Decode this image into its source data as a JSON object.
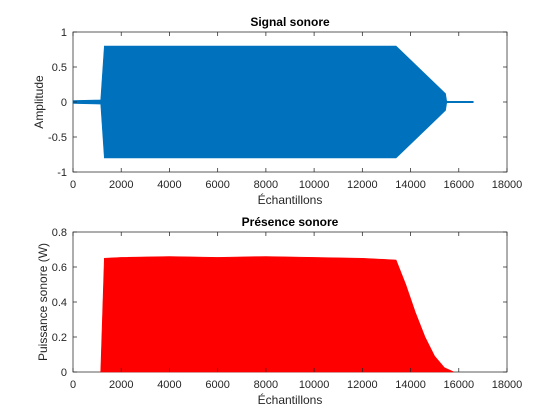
{
  "chart_data": [
    {
      "type": "area",
      "title": "Signal sonore",
      "xlabel": "Échantillons",
      "ylabel": "Amplitude",
      "xlim": [
        0,
        18000
      ],
      "ylim": [
        -1,
        1
      ],
      "xticks": [
        0,
        2000,
        4000,
        6000,
        8000,
        10000,
        12000,
        14000,
        16000,
        18000
      ],
      "yticks": [
        -1,
        -0.5,
        0,
        0.5,
        1
      ],
      "ytick_labels": [
        "-1",
        "-0.5",
        "0",
        "0.5",
        "1"
      ],
      "grid": false,
      "color": "#0072BD",
      "series": [
        {
          "x": [
            0,
            1150,
            1300,
            13400,
            15450,
            15500,
            16600
          ],
          "upper": [
            0.02,
            0.03,
            0.8,
            0.8,
            0.12,
            0.01,
            0.01
          ],
          "lower": [
            -0.02,
            -0.03,
            -0.8,
            -0.8,
            -0.12,
            -0.01,
            -0.01
          ]
        }
      ]
    },
    {
      "type": "area",
      "title": "Présence sonore",
      "xlabel": "Échantillons",
      "ylabel": "Puissance sonore (W)",
      "xlim": [
        0,
        18000
      ],
      "ylim": [
        0,
        0.8
      ],
      "xticks": [
        0,
        2000,
        4000,
        6000,
        8000,
        10000,
        12000,
        14000,
        16000,
        18000
      ],
      "yticks": [
        0,
        0.2,
        0.4,
        0.6,
        0.8
      ],
      "ytick_labels": [
        "0",
        "0.2",
        "0.4",
        "0.6",
        "0.8"
      ],
      "grid": false,
      "color": "#FF0000",
      "series": [
        {
          "x": [
            1150,
            1300,
            2000,
            4000,
            6000,
            8000,
            10000,
            12000,
            13400,
            13800,
            14200,
            14600,
            15000,
            15400,
            15800
          ],
          "y": [
            0.0,
            0.65,
            0.655,
            0.66,
            0.655,
            0.66,
            0.655,
            0.65,
            0.64,
            0.5,
            0.34,
            0.2,
            0.09,
            0.025,
            0.0
          ]
        }
      ]
    }
  ]
}
